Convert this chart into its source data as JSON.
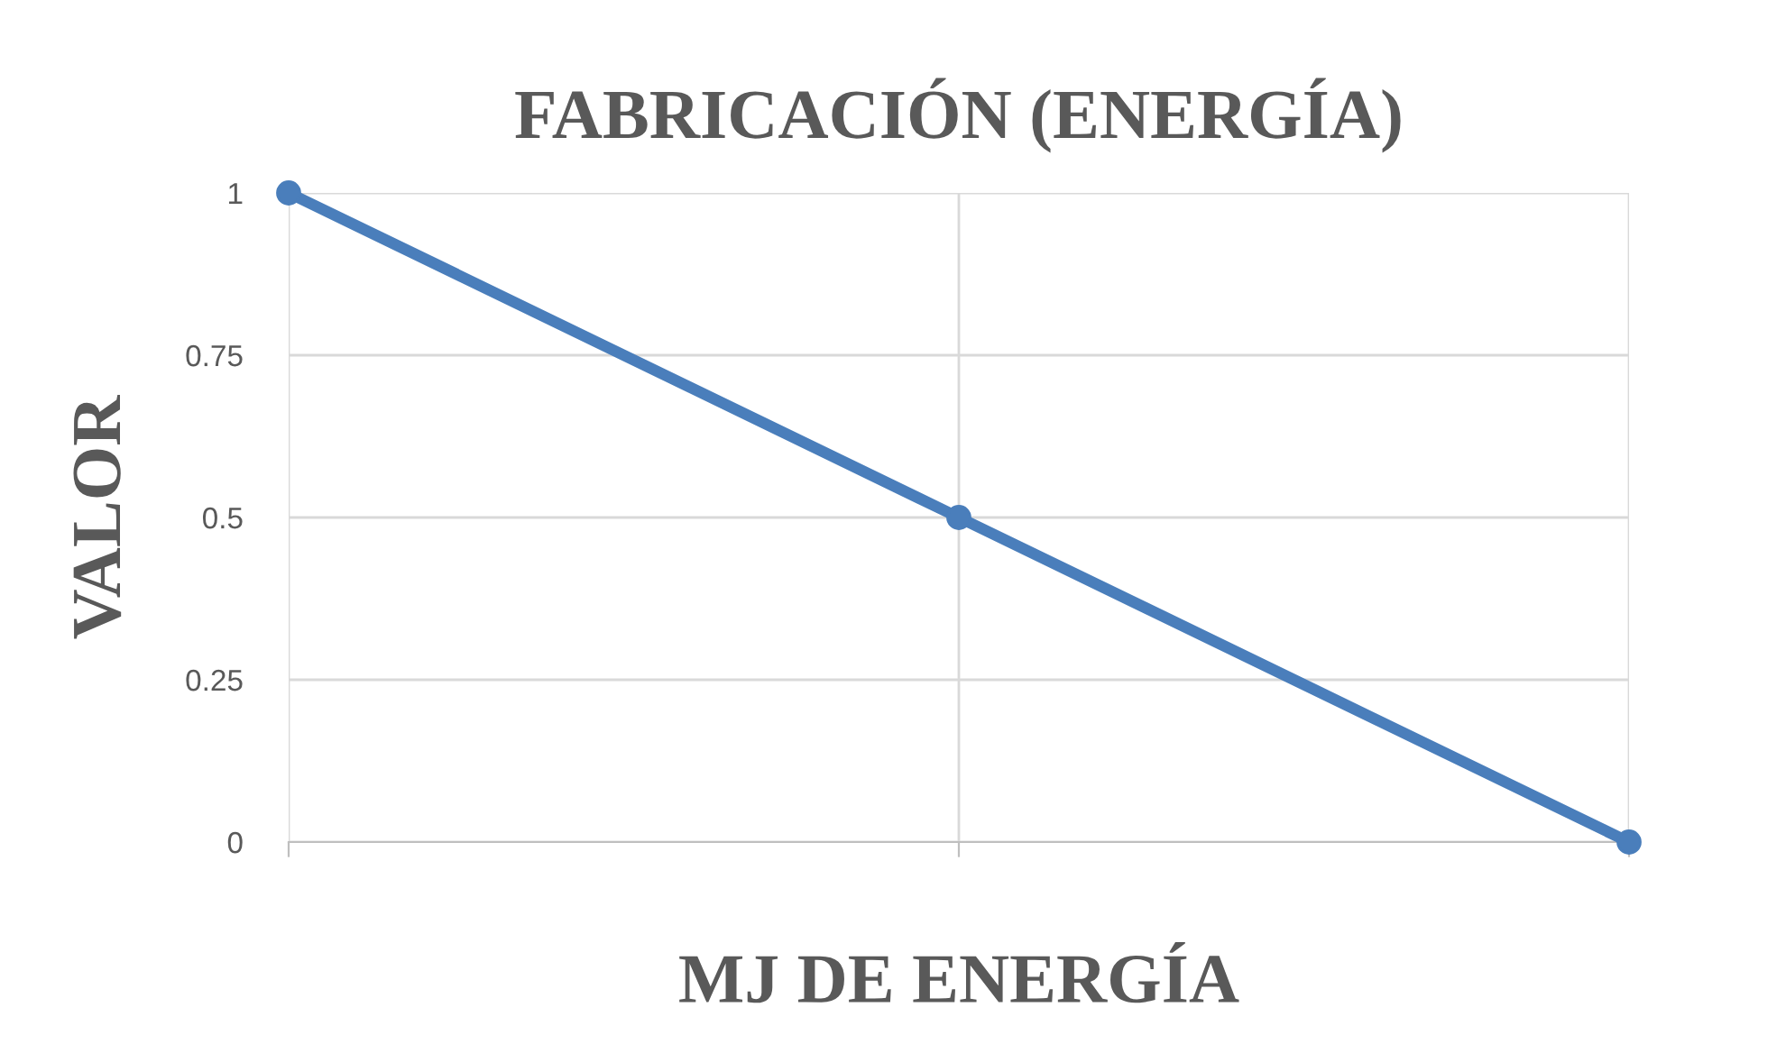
{
  "chart_data": {
    "type": "line",
    "title": "FABRICACIÓN (ENERGÍA)",
    "xlabel": "MJ DE ENERGÍA",
    "ylabel": "VALOR",
    "categories": [
      null,
      null,
      null
    ],
    "series": [
      {
        "color": "#4a7ebb",
        "values": [
          1,
          0.5,
          0
        ]
      }
    ],
    "ylim": [
      0,
      1
    ],
    "yticks": [
      0,
      0.25,
      0.5,
      0.75,
      1
    ],
    "grid": true,
    "marker": "circle",
    "line_style": "solid"
  }
}
